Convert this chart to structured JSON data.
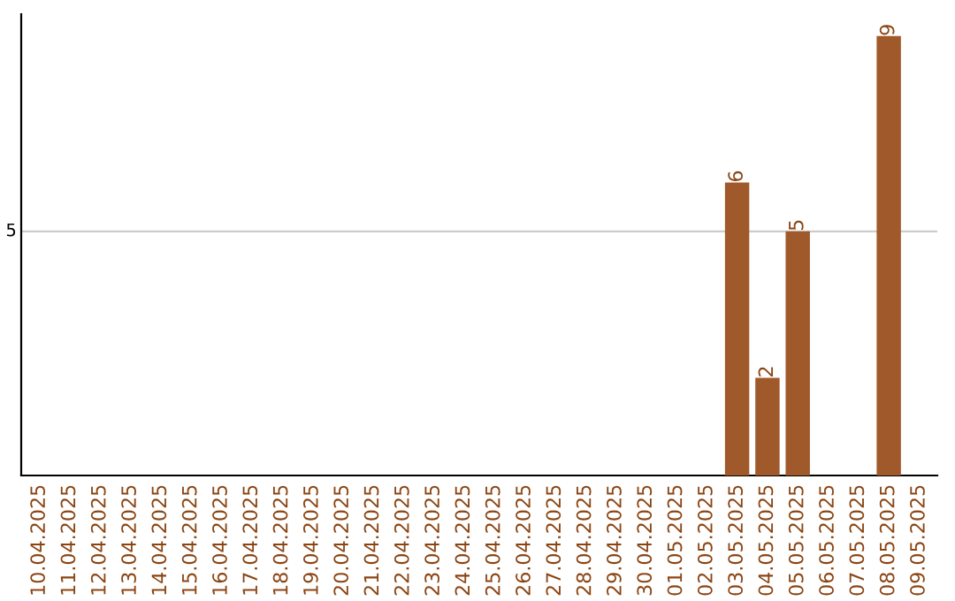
{
  "chart_data": {
    "type": "bar",
    "categories": [
      "10.04.2025",
      "11.04.2025",
      "12.04.2025",
      "13.04.2025",
      "14.04.2025",
      "15.04.2025",
      "16.04.2025",
      "17.04.2025",
      "18.04.2025",
      "19.04.2025",
      "20.04.2025",
      "21.04.2025",
      "22.04.2025",
      "23.04.2025",
      "24.04.2025",
      "25.04.2025",
      "26.04.2025",
      "27.04.2025",
      "28.04.2025",
      "29.04.2025",
      "30.04.2025",
      "01.05.2025",
      "02.05.2025",
      "03.05.2025",
      "04.05.2025",
      "05.05.2025",
      "06.05.2025",
      "07.05.2025",
      "08.05.2025",
      "09.05.2025"
    ],
    "values": [
      null,
      null,
      null,
      null,
      null,
      null,
      null,
      null,
      null,
      null,
      null,
      null,
      null,
      null,
      null,
      null,
      null,
      null,
      null,
      null,
      null,
      null,
      null,
      6,
      2,
      5,
      null,
      null,
      9,
      null
    ],
    "data_labels": true,
    "color": "#a0592a",
    "ref_lines": [
      {
        "axis": "y",
        "value": 5,
        "label": "5",
        "color": "#cccccc"
      }
    ]
  }
}
